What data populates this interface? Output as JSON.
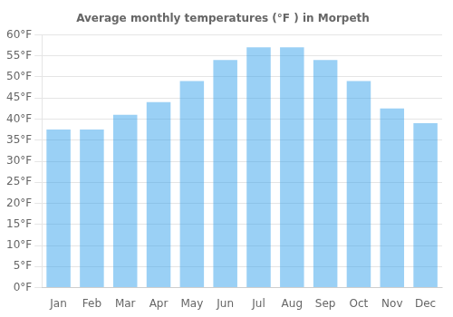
{
  "chart_data": {
    "type": "bar",
    "title": "Average monthly temperatures (°F ) in Morpeth",
    "categories": [
      "Jan",
      "Feb",
      "Mar",
      "Apr",
      "May",
      "Jun",
      "Jul",
      "Aug",
      "Sep",
      "Oct",
      "Nov",
      "Dec"
    ],
    "values": [
      37.5,
      37.5,
      41.0,
      44.0,
      49.0,
      54.0,
      57.0,
      57.0,
      54.0,
      49.0,
      42.5,
      39.0
    ],
    "ylim": [
      0,
      60
    ],
    "yticks": [
      {
        "value": 0,
        "label": "0°F"
      },
      {
        "value": 5,
        "label": "5°F"
      },
      {
        "value": 10,
        "label": "10°F"
      },
      {
        "value": 15,
        "label": "15°F"
      },
      {
        "value": 20,
        "label": "20°F"
      },
      {
        "value": 25,
        "label": "25°F"
      },
      {
        "value": 30,
        "label": "30°F"
      },
      {
        "value": 35,
        "label": "35°F"
      },
      {
        "value": 40,
        "label": "40°F"
      },
      {
        "value": 45,
        "label": "45°F"
      },
      {
        "value": 50,
        "label": "50°F"
      },
      {
        "value": 55,
        "label": "55°F"
      },
      {
        "value": 60,
        "label": "60°F"
      }
    ],
    "grid": true
  }
}
